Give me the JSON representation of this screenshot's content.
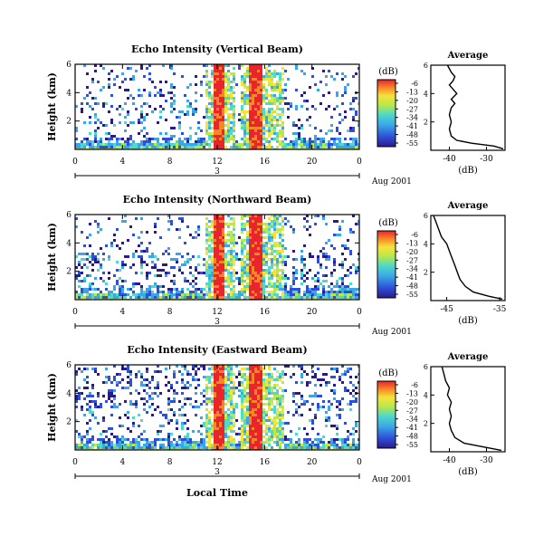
{
  "figure": {
    "date_label": "Aug 2001",
    "xlabel": "Local Time"
  },
  "colorbar": {
    "unit": "(dB)",
    "ticks": [
      "-6",
      "-13",
      "-20",
      "-27",
      "-34",
      "-41",
      "-48",
      "-55"
    ]
  },
  "chart_data": [
    {
      "type": "heatmap",
      "title": "Echo Intensity (Vertical Beam)",
      "ylabel": "Height (km)",
      "x_ticks": [
        "0",
        "4",
        "8",
        "12",
        "16",
        "20",
        "0"
      ],
      "x_range": [
        0,
        24
      ],
      "y_ticks": [
        "6",
        "4",
        "2"
      ],
      "y_range": [
        0,
        6
      ],
      "day_label": "3",
      "profile": {
        "title": "Average",
        "xlabel": "(dB)",
        "x_ticks": [
          "-40",
          "-30"
        ],
        "x_range": [
          -45,
          -25
        ],
        "y_ticks": [
          "6",
          "4",
          "2"
        ],
        "points": [
          [
            -25.5,
            0.1
          ],
          [
            -28,
            0.3
          ],
          [
            -34,
            0.5
          ],
          [
            -38,
            0.7
          ],
          [
            -39.5,
            1
          ],
          [
            -40,
            1.5
          ],
          [
            -39.5,
            2
          ],
          [
            -40,
            2.5
          ],
          [
            -39.5,
            3
          ],
          [
            -38.5,
            3.3
          ],
          [
            -39.5,
            3.6
          ],
          [
            -38,
            4
          ],
          [
            -39,
            4.3
          ],
          [
            -40,
            4.6
          ],
          [
            -39,
            4.9
          ],
          [
            -38.5,
            5.2
          ],
          [
            -39.5,
            5.5
          ],
          [
            -40.5,
            6
          ]
        ]
      }
    },
    {
      "type": "heatmap",
      "title": "Echo Intensity (Northward Beam)",
      "ylabel": "Height (km)",
      "x_ticks": [
        "0",
        "4",
        "8",
        "12",
        "16",
        "20",
        "0"
      ],
      "x_range": [
        0,
        24
      ],
      "y_ticks": [
        "6",
        "4",
        "2"
      ],
      "y_range": [
        0,
        6
      ],
      "day_label": "3",
      "profile": {
        "title": "Average",
        "xlabel": "(dB)",
        "x_ticks": [
          "-45",
          "-35"
        ],
        "x_range": [
          -48,
          -34
        ],
        "y_ticks": [
          "6",
          "4",
          "2"
        ],
        "points": [
          [
            -34.5,
            0.1
          ],
          [
            -37,
            0.3
          ],
          [
            -40,
            0.6
          ],
          [
            -41.5,
            1
          ],
          [
            -42.5,
            1.5
          ],
          [
            -43,
            2
          ],
          [
            -43.5,
            2.5
          ],
          [
            -44,
            3
          ],
          [
            -44.5,
            3.5
          ],
          [
            -45,
            4
          ],
          [
            -46,
            4.5
          ],
          [
            -46.5,
            5
          ],
          [
            -47,
            5.5
          ],
          [
            -47.5,
            6
          ]
        ]
      }
    },
    {
      "type": "heatmap",
      "title": "Echo Intensity (Eastward Beam)",
      "ylabel": "Height (km)",
      "x_ticks": [
        "0",
        "4",
        "8",
        "12",
        "16",
        "20",
        "0"
      ],
      "x_range": [
        0,
        24
      ],
      "y_ticks": [
        "6",
        "4",
        "2"
      ],
      "y_range": [
        0,
        6
      ],
      "day_label": "3",
      "profile": {
        "title": "Average",
        "xlabel": "(dB)",
        "x_ticks": [
          "-40",
          "-30"
        ],
        "x_range": [
          -45,
          -25
        ],
        "y_ticks": [
          "6",
          "4",
          "2"
        ],
        "points": [
          [
            -26,
            0.1
          ],
          [
            -30,
            0.3
          ],
          [
            -36,
            0.6
          ],
          [
            -38.5,
            1
          ],
          [
            -39.5,
            1.5
          ],
          [
            -40,
            2
          ],
          [
            -39.5,
            2.5
          ],
          [
            -40,
            3
          ],
          [
            -39.5,
            3.5
          ],
          [
            -40.5,
            4
          ],
          [
            -40,
            4.5
          ],
          [
            -41,
            5
          ],
          [
            -41.5,
            5.5
          ],
          [
            -42,
            6
          ]
        ]
      }
    }
  ]
}
